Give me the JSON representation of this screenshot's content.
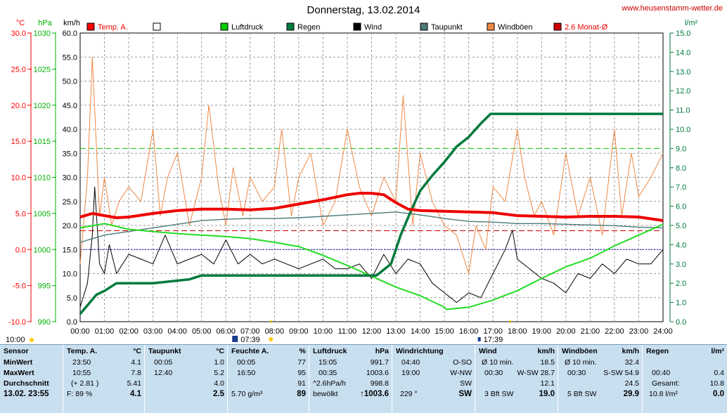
{
  "title": "Donnerstag, 13.02.2014",
  "site": "www.heusenstamm-wetter.de",
  "chart_data": {
    "type": "line",
    "x_ticks": [
      "00:00",
      "01:00",
      "02:00",
      "03:00",
      "04:00",
      "05:00",
      "06:00",
      "07:00",
      "08:00",
      "09:00",
      "10:00",
      "11:00",
      "12:00",
      "13:00",
      "14:00",
      "15:00",
      "16:00",
      "17:00",
      "18:00",
      "19:00",
      "20:00",
      "21:00",
      "22:00",
      "23:00",
      "24:00"
    ],
    "x_range": [
      0,
      24
    ],
    "axes": {
      "temp": {
        "unit": "°C",
        "range": [
          -10,
          30
        ],
        "ticks": [
          "30.0",
          "25.0",
          "20.0",
          "15.0",
          "10.0",
          "5.0",
          "0.0",
          "-5.0",
          "-10.0"
        ]
      },
      "pressure": {
        "unit": "hPa",
        "range": [
          990,
          1030
        ],
        "ticks": [
          "1030",
          "1025",
          "1020",
          "1015",
          "1010",
          "1005",
          "1000",
          "995",
          "990"
        ]
      },
      "wind": {
        "unit": "km/h",
        "range": [
          0,
          60
        ],
        "ticks": [
          "60.0",
          "55.0",
          "50.0",
          "45.0",
          "40.0",
          "35.0",
          "30.0",
          "25.0",
          "20.0",
          "15.0",
          "10.0",
          "5.0",
          "0.0"
        ]
      },
      "rain": {
        "unit": "l/m²",
        "range": [
          0,
          15
        ],
        "ticks": [
          "15.0",
          "14.0",
          "13.0",
          "12.0",
          "11.0",
          "10.0",
          "9.0",
          "8.0",
          "7.0",
          "6.0",
          "5.0",
          "4.0",
          "3.0",
          "2.0",
          "1.0",
          "0.0"
        ]
      }
    },
    "legend": [
      {
        "label": "Temp. A.",
        "color": "#ff0000"
      },
      {
        "label": "",
        "color": "#ffffff"
      },
      {
        "label": "Luftdruck",
        "color": "#00cc00"
      },
      {
        "label": "Regen",
        "color": "#007a3d"
      },
      {
        "label": "Wind",
        "color": "#000000"
      },
      {
        "label": "Taupunkt",
        "color": "#4a7a7a"
      },
      {
        "label": "Windböen",
        "color": "#ee8844"
      },
      {
        "label": "2.6 Monat-Ø",
        "color": "#cc0000"
      }
    ],
    "reference_lines": {
      "monthly_avg_temp": 2.6,
      "rain_dashed": 9.0,
      "freezing": 0.0
    },
    "series": [
      {
        "name": "Temp. A.",
        "axis": "temp",
        "x": [
          0,
          0.5,
          1,
          1.5,
          2,
          3,
          4,
          5,
          6,
          7,
          8,
          8.5,
          9,
          10,
          11,
          11.5,
          12,
          12.5,
          13,
          13.5,
          14,
          15,
          16,
          17,
          18,
          19,
          20,
          21,
          22,
          23,
          23.83,
          24
        ],
        "y": [
          4.5,
          5.0,
          4.7,
          4.4,
          4.5,
          5.0,
          5.4,
          5.6,
          5.6,
          5.5,
          5.7,
          6.0,
          6.3,
          6.9,
          7.6,
          7.8,
          7.8,
          7.6,
          6.5,
          5.6,
          5.4,
          5.3,
          5.2,
          5.1,
          4.7,
          4.6,
          4.5,
          4.6,
          4.6,
          4.5,
          4.1,
          4.0
        ]
      },
      {
        "name": "Taupunkt",
        "axis": "temp",
        "x": [
          0,
          1,
          2,
          3,
          4,
          5,
          6,
          7,
          8,
          9,
          10,
          11,
          12,
          13,
          14,
          15,
          16,
          17,
          18,
          19,
          20,
          21,
          22,
          23,
          24
        ],
        "y": [
          1.0,
          2.0,
          2.5,
          3.0,
          3.5,
          4.0,
          4.2,
          4.3,
          4.3,
          4.4,
          4.6,
          4.8,
          5.0,
          5.2,
          4.8,
          4.3,
          3.9,
          3.8,
          3.6,
          3.6,
          3.5,
          3.4,
          3.3,
          3.1,
          3.0
        ]
      },
      {
        "name": "Luftdruck",
        "axis": "pressure",
        "x": [
          0,
          1,
          2,
          3,
          4,
          5,
          6,
          7,
          8,
          9,
          10,
          11,
          12,
          13,
          14,
          15,
          15.08,
          16,
          17,
          18,
          19,
          20,
          21,
          22,
          23,
          24
        ],
        "y": [
          1003,
          1003.6,
          1002.8,
          1002.5,
          1002.2,
          1002.0,
          1001.8,
          1001.5,
          1001.0,
          1000.4,
          999.2,
          997.8,
          996.3,
          994.8,
          993.6,
          992.0,
          991.7,
          992.0,
          993.0,
          994.3,
          996.0,
          997.6,
          998.8,
          1000.5,
          1002.0,
          1003.5
        ]
      },
      {
        "name": "Regen",
        "axis": "rain",
        "x": [
          0,
          0.67,
          1,
          1.5,
          2,
          3,
          4.5,
          5,
          6,
          7,
          8,
          9,
          10,
          11,
          12.2,
          12.8,
          13.2,
          13.6,
          14,
          14.5,
          15,
          15.5,
          16,
          16.5,
          16.9,
          17.2,
          24
        ],
        "y": [
          0.4,
          1.4,
          1.6,
          2.0,
          2.0,
          2.0,
          2.2,
          2.4,
          2.4,
          2.4,
          2.4,
          2.4,
          2.4,
          2.4,
          2.4,
          3.0,
          4.5,
          5.7,
          6.8,
          7.6,
          8.3,
          9.1,
          9.6,
          10.3,
          10.8,
          10.8,
          10.8
        ]
      },
      {
        "name": "Wind",
        "axis": "wind",
        "x": [
          0,
          0.3,
          0.5,
          0.6,
          0.8,
          1,
          1.2,
          1.5,
          2,
          2.5,
          3,
          3.5,
          4,
          4.5,
          5,
          5.5,
          6,
          6.5,
          7,
          7.5,
          8,
          8.5,
          9,
          9.5,
          10,
          10.5,
          11,
          11.5,
          12,
          12.5,
          13,
          13.5,
          14,
          14.5,
          15,
          15.5,
          16,
          16.5,
          17,
          17.5,
          17.8,
          18,
          18.5,
          19,
          19.5,
          20,
          20.5,
          21,
          21.5,
          22,
          22.5,
          23,
          23.5,
          24
        ],
        "y": [
          3,
          8,
          18,
          28,
          12,
          10,
          16,
          10,
          14,
          13,
          12,
          18,
          12,
          13,
          14,
          12,
          17,
          12,
          14,
          12,
          13,
          12,
          11,
          12,
          13,
          11,
          11,
          12,
          9,
          14,
          10,
          13,
          12,
          8,
          6,
          4,
          6,
          5,
          10,
          15,
          19,
          13,
          11,
          9,
          8,
          6,
          10,
          9,
          12,
          10,
          13,
          12,
          12,
          15
        ]
      },
      {
        "name": "Windböen",
        "axis": "wind",
        "x": [
          0,
          0.3,
          0.5,
          0.8,
          1,
          1.3,
          1.6,
          2,
          2.5,
          3,
          3.3,
          3.6,
          4,
          4.5,
          5,
          5.3,
          5.7,
          6,
          6.3,
          6.7,
          7,
          7.5,
          8,
          8.3,
          8.7,
          9,
          9.5,
          10,
          10.5,
          11,
          11.5,
          12,
          12.5,
          13,
          13.3,
          13.7,
          14,
          14.5,
          15,
          15.5,
          16,
          16.3,
          16.7,
          17,
          17.5,
          18,
          18.3,
          18.7,
          19,
          19.5,
          20,
          20.5,
          21,
          21.5,
          22,
          22.3,
          22.7,
          23,
          23.5,
          24
        ],
        "y": [
          12,
          30,
          55,
          22,
          30,
          20,
          25,
          28,
          25,
          40,
          22,
          30,
          35,
          20,
          30,
          45,
          28,
          20,
          32,
          22,
          30,
          25,
          28,
          40,
          22,
          30,
          35,
          20,
          25,
          40,
          28,
          22,
          30,
          25,
          47,
          20,
          35,
          25,
          20,
          18,
          10,
          20,
          15,
          28,
          25,
          40,
          30,
          22,
          25,
          18,
          35,
          22,
          30,
          18,
          40,
          22,
          35,
          26,
          30,
          35
        ]
      }
    ],
    "markers": {
      "sunrise": "07:39",
      "sunset": "17:39",
      "start": "10:00"
    }
  },
  "stats": {
    "sensor": {
      "header": "Sensor",
      "rows": [
        "MinWert",
        "MaxWert",
        "Durchschnitt"
      ],
      "date": "13.02. 23:55"
    },
    "temp": {
      "header": "Temp. A.",
      "unit": "°C",
      "min_time": "23:50",
      "min": "4.1",
      "max_time": "10:55",
      "max": "7.8",
      "avg_note": "(+ 2.81 )",
      "avg": "5.41",
      "foot_left": "F: 89 %",
      "foot_right": "4.1"
    },
    "dew": {
      "header": "Taupunkt",
      "unit": "°C",
      "min_time": "00:05",
      "min": "1.0",
      "max_time": "12:40",
      "max": "5.2",
      "avg": "4.0",
      "foot": "2.5"
    },
    "hum": {
      "header": "Feuchte A.",
      "unit": "%",
      "min_time": "00:05",
      "min": "77",
      "max_time": "16:50",
      "max": "95",
      "avg": "91",
      "foot_left": "5.70 g/m³",
      "foot_right": "89"
    },
    "press": {
      "header": "Luftdruck",
      "unit": "hPa",
      "min_time": "15:05",
      "min": "991.7",
      "max_time": "00:35",
      "max": "1003.6",
      "avg_note": "^2.6hPa/h",
      "avg": "998.8",
      "foot_left": "bewölkt",
      "foot_right": "↑1003.6"
    },
    "winddir": {
      "header": "Windrichtung",
      "r1_time": "04:40",
      "r1": "O-SO",
      "r2_time": "19:00",
      "r2": "W-NW",
      "r3": "SW",
      "foot_left": "229 °",
      "foot_right": "SW"
    },
    "wind": {
      "header": "Wind",
      "unit": "km/h",
      "r1_left": "Ø 10 min.",
      "r1": "18.5",
      "r2_left": "00:30",
      "r2_mid": "W-SW",
      "r2": "28.7",
      "r3": "12.1",
      "foot_left": "3 Bft SW",
      "foot_right": "19.0"
    },
    "gust": {
      "header": "Windböen",
      "unit": "km/h",
      "r1_left": "Ø 10 min.",
      "r1": "32.4",
      "r2_left": "00:30",
      "r2_mid": "S-SW",
      "r2": "54.9",
      "r3": "24.5",
      "foot_left": "5 Bft SW",
      "foot_right": "29.9"
    },
    "rain": {
      "header": "Regen",
      "unit": "l/m²",
      "r2_left": "00:40",
      "r2": "0.4",
      "r3_left": "Gesamt:",
      "r3": "10.8",
      "foot_left": "10.8 l/m²",
      "foot_right": "0.0"
    }
  }
}
